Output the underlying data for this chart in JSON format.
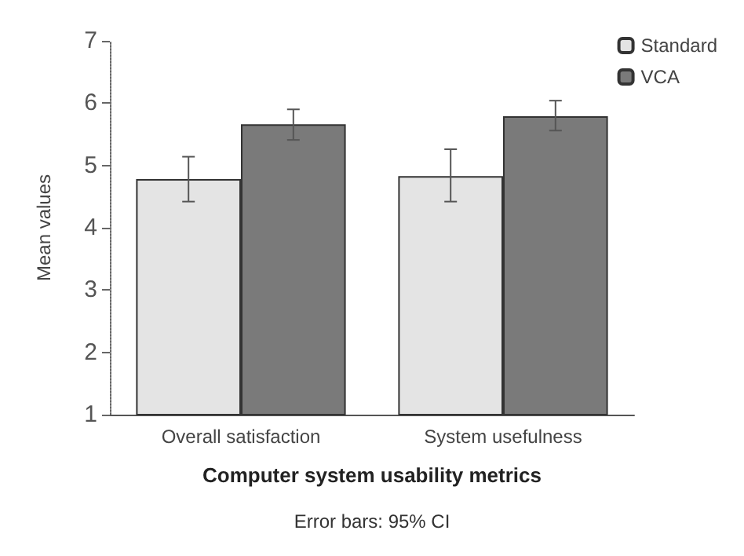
{
  "chart_data": {
    "type": "bar",
    "xlabel": "Computer system usability metrics",
    "ylabel": "Mean values",
    "categories": [
      "Overall satisfaction",
      "System usefulness"
    ],
    "series": [
      {
        "name": "Standard",
        "color": "#e4e4e4",
        "values": [
          4.78,
          4.83
        ],
        "errors": [
          [
            4.42,
            5.14
          ],
          [
            4.42,
            5.26
          ]
        ]
      },
      {
        "name": "VCA",
        "color": "#7a7a7a",
        "values": [
          5.66,
          5.79
        ],
        "errors": [
          [
            5.41,
            5.9
          ],
          [
            5.56,
            6.04
          ]
        ]
      }
    ],
    "ylim": [
      1,
      7
    ],
    "yticks": [
      1,
      2,
      3,
      4,
      5,
      6,
      7
    ],
    "grid": false,
    "legend": "top right",
    "annotations": [
      "Error bars: 95% CI"
    ]
  }
}
